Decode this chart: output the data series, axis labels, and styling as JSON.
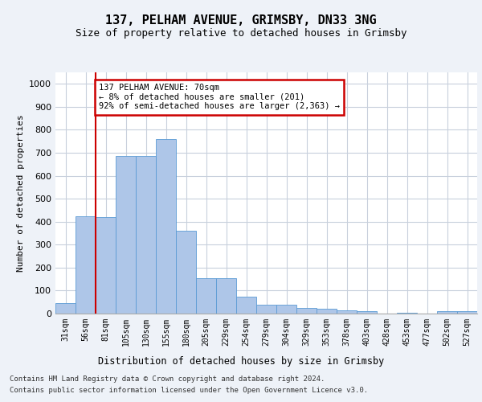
{
  "title1": "137, PELHAM AVENUE, GRIMSBY, DN33 3NG",
  "title2": "Size of property relative to detached houses in Grimsby",
  "xlabel": "Distribution of detached houses by size in Grimsby",
  "ylabel": "Number of detached properties",
  "categories": [
    "31sqm",
    "56sqm",
    "81sqm",
    "105sqm",
    "130sqm",
    "155sqm",
    "180sqm",
    "205sqm",
    "229sqm",
    "254sqm",
    "279sqm",
    "304sqm",
    "329sqm",
    "353sqm",
    "378sqm",
    "403sqm",
    "428sqm",
    "453sqm",
    "477sqm",
    "502sqm",
    "527sqm"
  ],
  "values": [
    47,
    425,
    420,
    685,
    685,
    760,
    360,
    155,
    155,
    75,
    37,
    37,
    25,
    20,
    15,
    10,
    0,
    5,
    0,
    10,
    10
  ],
  "bar_color": "#aec6e8",
  "bar_edge_color": "#5b9bd5",
  "property_line_x": 1.5,
  "annotation_title": "137 PELHAM AVENUE: 70sqm",
  "annotation_line1": "← 8% of detached houses are smaller (201)",
  "annotation_line2": "92% of semi-detached houses are larger (2,363) →",
  "annotation_box_color": "#ffffff",
  "annotation_box_edge": "#cc0000",
  "property_line_color": "#cc0000",
  "ylim": [
    0,
    1050
  ],
  "footnote1": "Contains HM Land Registry data © Crown copyright and database right 2024.",
  "footnote2": "Contains public sector information licensed under the Open Government Licence v3.0.",
  "bg_color": "#eef2f8",
  "plot_bg_color": "#ffffff",
  "grid_color": "#c8d0dc"
}
